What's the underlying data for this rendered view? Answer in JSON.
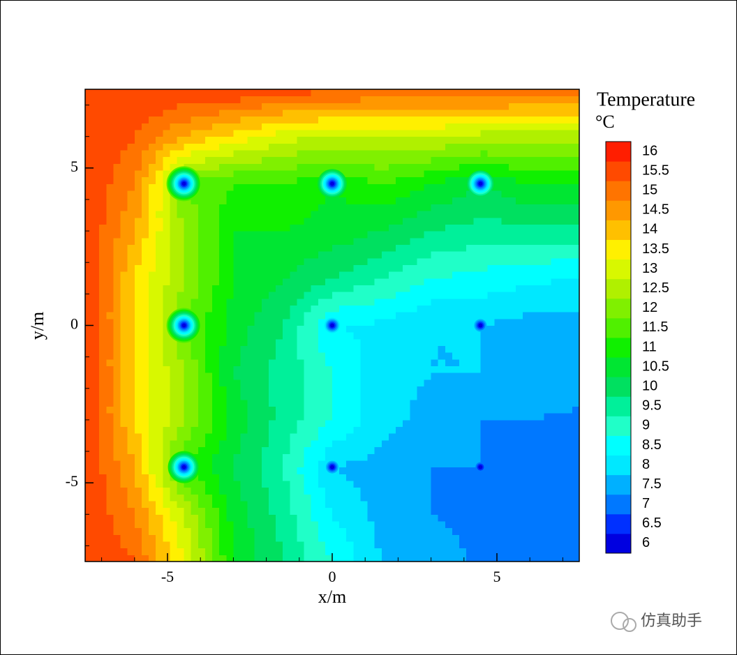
{
  "chart_data": {
    "type": "contour",
    "x_label": "x/m",
    "y_label": "y/m",
    "xlim": [
      -7.5,
      7.5
    ],
    "ylim": [
      -7.5,
      7.5
    ],
    "xticks": [
      -5,
      0,
      5
    ],
    "yticks": [
      -5,
      0,
      5
    ],
    "xminorticks": [
      -7,
      -6,
      -5,
      -4,
      -3,
      -2,
      -1,
      0,
      1,
      2,
      3,
      4,
      5,
      6,
      7
    ],
    "yminorticks": [
      -7,
      -6,
      -5,
      -4,
      -3,
      -2,
      -1,
      0,
      1,
      2,
      3,
      4,
      5,
      6,
      7
    ],
    "grid_x": [
      -7.5,
      -6,
      -4.5,
      -3,
      -1.5,
      0,
      1.5,
      3,
      4.5,
      6,
      7.5
    ],
    "grid_y": [
      -7.5,
      -6,
      -4.5,
      -3,
      -1.5,
      0,
      1.5,
      3,
      4.5,
      6,
      7.5
    ],
    "z": [
      [
        16,
        15.5,
        13.5,
        11,
        10,
        9,
        8,
        7.8,
        7.4,
        7.4,
        7.4
      ],
      [
        16,
        15,
        13,
        10.8,
        9.8,
        8.5,
        7.8,
        7.5,
        7.3,
        7.4,
        7.4
      ],
      [
        16,
        14.5,
        11.5,
        10.5,
        9.5,
        8,
        7.8,
        7.5,
        7.5,
        7.2,
        7.4
      ],
      [
        16,
        14,
        12.5,
        10.8,
        9.8,
        9,
        8.2,
        7.8,
        7.5,
        7.5,
        7.4
      ],
      [
        16,
        14,
        12.5,
        10.5,
        9.8,
        9,
        8.2,
        8,
        8,
        7.8,
        7.8
      ],
      [
        16,
        14,
        12,
        10.8,
        10,
        8.5,
        8.4,
        8,
        8,
        7.8,
        7.8
      ],
      [
        16,
        14,
        12.5,
        11,
        10.5,
        10,
        9.5,
        9,
        8.8,
        8.6,
        8.5
      ],
      [
        16,
        14.5,
        12.5,
        11,
        11,
        10.8,
        10.5,
        10,
        9.8,
        9.8,
        9.8
      ],
      [
        16,
        15,
        12,
        11.5,
        11.5,
        11,
        11.5,
        11,
        10.5,
        11,
        11
      ],
      [
        16,
        15.5,
        14.5,
        13.8,
        13.2,
        13,
        13,
        13,
        12.8,
        12.8,
        12.8
      ],
      [
        16,
        16,
        16,
        16,
        15.8,
        15.6,
        15.5,
        15.5,
        15.5,
        15.4,
        15.3
      ]
    ],
    "wells": {
      "x": [
        -4.5,
        0,
        4.5,
        -4.5,
        0,
        4.5,
        -4.5,
        0,
        4.5
      ],
      "y": [
        4.5,
        4.5,
        4.5,
        0,
        0,
        0,
        -4.5,
        -4.5,
        -4.5
      ],
      "values": [
        6,
        6,
        6,
        6,
        6,
        6,
        6,
        6,
        6
      ]
    },
    "colorbar": {
      "title": "Temperature",
      "unit": "°C",
      "levels": [
        6,
        6.5,
        7,
        7.5,
        8,
        8.5,
        9,
        9.5,
        10,
        10.5,
        11,
        11.5,
        12,
        12.5,
        13,
        13.5,
        14,
        14.5,
        15,
        15.5,
        16
      ],
      "colors": [
        "#0000e0",
        "#0030ff",
        "#0078ff",
        "#00b0ff",
        "#00e8ff",
        "#00ffff",
        "#20ffc8",
        "#00f09a",
        "#00e060",
        "#00e632",
        "#10f000",
        "#50f000",
        "#80f000",
        "#b0f000",
        "#d8f800",
        "#fff000",
        "#ffc000",
        "#ff9800",
        "#ff7400",
        "#ff4a00",
        "#ff1e00"
      ]
    }
  },
  "watermark": "仿真助手"
}
